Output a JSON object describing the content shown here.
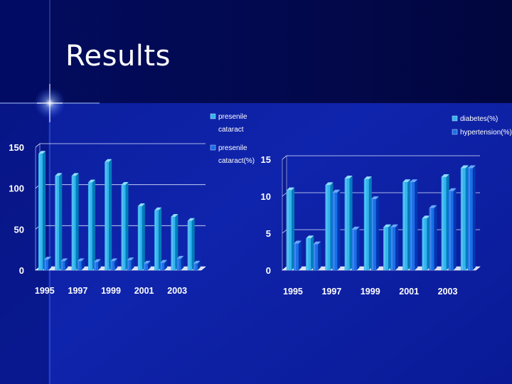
{
  "slide": {
    "title": "Results"
  },
  "colors": {
    "bar_light": "#34b4f0",
    "bar_light_top": "#8fdcff",
    "bar_dark": "#1a6fe8",
    "bar_dark_top": "#6aa8ff",
    "background": "#0d1fa0",
    "header": "#020a55",
    "text": "#ffffff"
  },
  "chart_data": [
    {
      "type": "bar",
      "categories": [
        "1995",
        "1996",
        "1997",
        "1998",
        "1999",
        "2000",
        "2001",
        "2002",
        "2003",
        "2004"
      ],
      "x_tick_labels": [
        "1995",
        "1997",
        "1999",
        "2001",
        "2003"
      ],
      "y_ticks": [
        "0",
        "50",
        "100",
        "150"
      ],
      "ylim": [
        0,
        150
      ],
      "legend_position": "top-right",
      "grid": true,
      "series": [
        {
          "name": "presenile cataract",
          "values": [
            142,
            115,
            115,
            107,
            132,
            104,
            78,
            73,
            65,
            60
          ]
        },
        {
          "name": "presenile cataract(%)",
          "values": [
            13,
            11,
            11,
            10,
            11,
            12,
            8,
            9,
            14,
            8
          ]
        }
      ]
    },
    {
      "type": "bar",
      "categories": [
        "1995",
        "1996",
        "1997",
        "1998",
        "1999",
        "2000",
        "2001",
        "2002",
        "2003",
        "2004"
      ],
      "x_tick_labels": [
        "1995",
        "1997",
        "1999",
        "2001",
        "2003"
      ],
      "y_ticks": [
        "0",
        "5",
        "10",
        "15"
      ],
      "ylim": [
        0,
        15
      ],
      "legend_position": "top-right",
      "grid": true,
      "series": [
        {
          "name": "diabetes(%)",
          "values": [
            10.8,
            4.3,
            11.5,
            12.4,
            12.3,
            5.8,
            11.9,
            7.0,
            12.6,
            13.8
          ]
        },
        {
          "name": "hypertension(%)",
          "values": [
            3.6,
            3.5,
            10.5,
            5.5,
            9.6,
            5.8,
            11.9,
            8.4,
            10.7,
            13.8
          ]
        }
      ]
    }
  ]
}
